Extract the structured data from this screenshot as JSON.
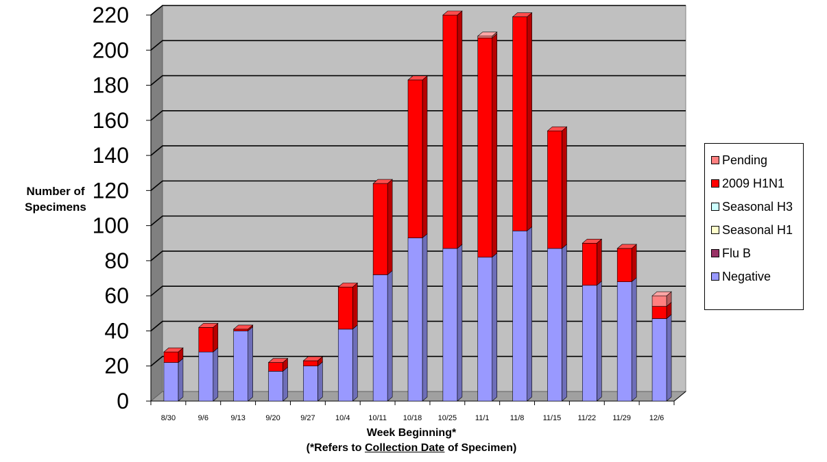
{
  "chart_data": {
    "type": "bar",
    "stacked": true,
    "three_d": true,
    "title": "",
    "ylabel_lines": [
      "Number of",
      "Specimens"
    ],
    "xlabel_line1": "Week Beginning*",
    "xlabel_line2_prefix": "(*Refers to ",
    "xlabel_line2_underlined": "Collection Date",
    "xlabel_line2_suffix": " of Specimen)",
    "ylim": [
      0,
      220
    ],
    "yticks": [
      0,
      20,
      40,
      60,
      80,
      100,
      120,
      140,
      160,
      180,
      200,
      220
    ],
    "grid": true,
    "legend_position": "right",
    "categories": [
      "8/30",
      "9/6",
      "9/13",
      "9/20",
      "9/27",
      "10/4",
      "10/11",
      "10/18",
      "10/25",
      "11/1",
      "11/8",
      "11/15",
      "11/22",
      "11/29",
      "12/6"
    ],
    "series": [
      {
        "name": "Negative",
        "color": "#9999FF",
        "values": [
          22,
          28,
          40,
          17,
          20,
          41,
          72,
          93,
          87,
          82,
          97,
          87,
          66,
          68,
          47
        ]
      },
      {
        "name": "Flu B",
        "color": "#993366",
        "values": [
          0,
          0,
          0,
          0,
          0,
          0,
          0,
          0,
          0,
          0,
          0,
          0,
          0,
          0,
          0
        ]
      },
      {
        "name": "Seasonal H1",
        "color": "#FFFFCC",
        "values": [
          0,
          0,
          0,
          0,
          0,
          0,
          0,
          0,
          0,
          0,
          0,
          0,
          0,
          0,
          0
        ]
      },
      {
        "name": "Seasonal H3",
        "color": "#CCFFFF",
        "values": [
          0,
          0,
          0,
          0,
          0,
          0,
          0,
          0,
          0,
          0,
          0,
          0,
          0,
          0,
          0
        ]
      },
      {
        "name": "2009 H1N1",
        "color": "#FF0000",
        "values": [
          6,
          14,
          1,
          5,
          3,
          24,
          52,
          90,
          133,
          125,
          122,
          67,
          24,
          19,
          7
        ]
      },
      {
        "name": "Pending",
        "color": "#FF8080",
        "values": [
          0,
          0,
          0,
          0,
          0,
          0,
          0,
          0,
          0,
          1,
          0,
          0,
          0,
          0,
          6
        ]
      }
    ],
    "legend_order": [
      "Pending",
      "2009 H1N1",
      "Seasonal H3",
      "Seasonal H1",
      "Flu B",
      "Negative"
    ]
  }
}
